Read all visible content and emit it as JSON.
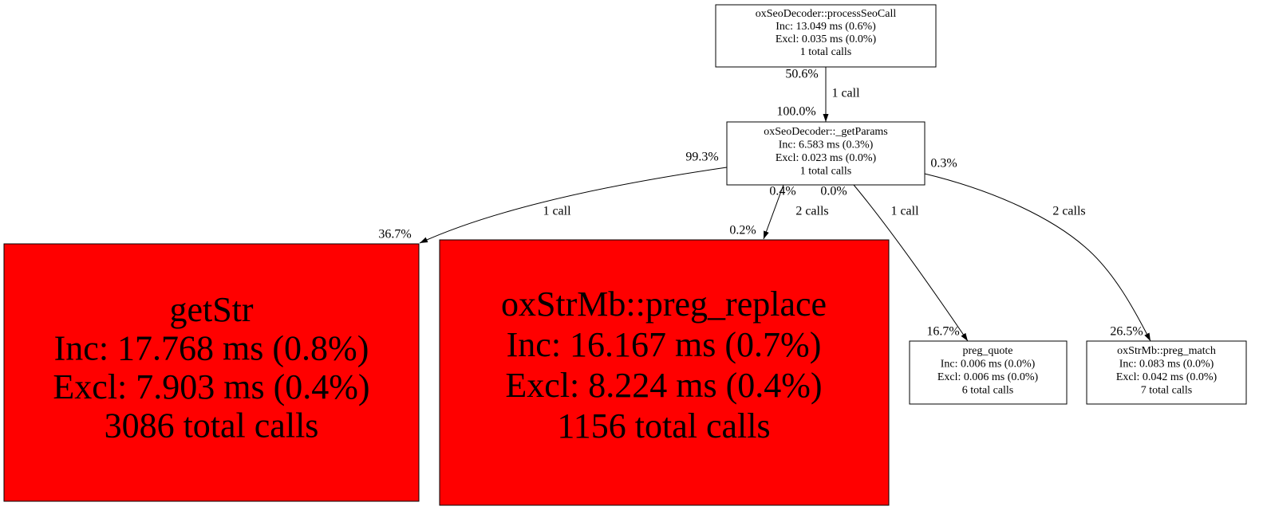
{
  "nodes": [
    {
      "lines": [
        "oxSeoDecoder::processSeoCall",
        "Inc: 13.049 ms (0.6%)",
        "Excl: 0.035 ms (0.0%)",
        "1 total calls"
      ]
    },
    {
      "lines": [
        "oxSeoDecoder::_getParams",
        "Inc: 6.583 ms (0.3%)",
        "Excl: 0.023 ms (0.0%)",
        "1 total calls"
      ]
    },
    {
      "lines": [
        "getStr",
        "Inc: 17.768 ms (0.8%)",
        "Excl: 7.903 ms (0.4%)",
        "3086 total calls"
      ]
    },
    {
      "lines": [
        "oxStrMb::preg_replace",
        "Inc: 16.167 ms (0.7%)",
        "Excl: 8.224 ms (0.4%)",
        "1156 total calls"
      ]
    },
    {
      "lines": [
        "preg_quote",
        "Inc: 0.006 ms (0.0%)",
        "Excl: 0.006 ms (0.0%)",
        "6 total calls"
      ]
    },
    {
      "lines": [
        "oxStrMb::preg_match",
        "Inc: 0.083 ms (0.0%)",
        "Excl: 0.042 ms (0.0%)",
        "7 total calls"
      ]
    }
  ],
  "edges": [
    {
      "label": "1 call",
      "tail": "50.6%",
      "head": "100.0%"
    },
    {
      "label": "1 call",
      "tail": "99.3%",
      "head": "36.7%"
    },
    {
      "label": "2 calls",
      "tail": "0.4%",
      "head": "0.2%"
    },
    {
      "label": "1 call",
      "tail": "0.0%",
      "head": "16.7%"
    },
    {
      "label": "2 calls",
      "tail": "0.3%",
      "head": "26.5%"
    }
  ]
}
